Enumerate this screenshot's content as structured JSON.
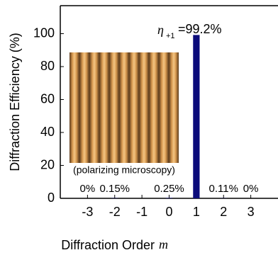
{
  "chart_data": {
    "type": "bar",
    "ylabel": "Diffraction Efficiency (%)",
    "xlabel": "Diffraction Order",
    "xlabel_symbol": "m",
    "x": [
      -3,
      -2,
      -1,
      0,
      1,
      2,
      3
    ],
    "values": [
      0,
      0.15,
      0,
      0.25,
      99.2,
      0.11,
      0
    ],
    "value_labels": [
      "0%",
      "0.15%",
      null,
      "0.25%",
      null,
      "0.11%",
      "0%"
    ],
    "annotation": {
      "symbol": "η",
      "subscript": "+1",
      "text": "=99.2%"
    },
    "inset_caption": "(polarizing microscopy)",
    "color": "#0b0b7a",
    "xlim": [
      -4,
      4
    ],
    "xticks": [
      -3,
      -2,
      -1,
      0,
      1,
      2,
      3
    ],
    "ylim": [
      0,
      117
    ],
    "yticks": [
      0,
      20,
      40,
      60,
      80,
      100
    ]
  }
}
